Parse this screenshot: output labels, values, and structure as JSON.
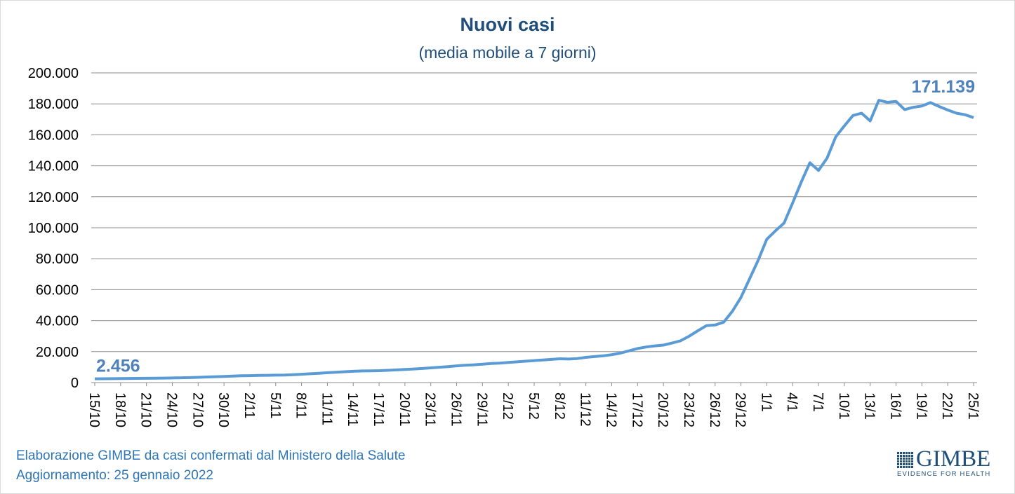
{
  "chart_data": {
    "type": "line",
    "title": "Nuovi casi",
    "subtitle": "(media mobile a 7 giorni)",
    "xlabel": "",
    "ylabel": "",
    "ylim": [
      0,
      200000
    ],
    "yticks": [
      "0",
      "20.000",
      "40.000",
      "60.000",
      "80.000",
      "100.000",
      "120.000",
      "140.000",
      "160.000",
      "180.000",
      "200.000"
    ],
    "grid": true,
    "line_color": "#5b9bd5",
    "xtick_labels": [
      "15/10",
      "18/10",
      "21/10",
      "24/10",
      "27/10",
      "30/10",
      "2/11",
      "5/11",
      "8/11",
      "11/11",
      "14/11",
      "17/11",
      "20/11",
      "23/11",
      "26/11",
      "29/11",
      "2/12",
      "5/12",
      "8/12",
      "11/12",
      "14/12",
      "17/12",
      "20/12",
      "23/12",
      "26/12",
      "29/12",
      "1/1",
      "4/1",
      "7/1",
      "10/1",
      "13/1",
      "16/1",
      "19/1",
      "22/1",
      "25/1"
    ],
    "xtick_every_days": 3,
    "start_date": "15/10",
    "end_date": "25/1",
    "series": [
      {
        "name": "Nuovi casi",
        "values": [
          2456,
          2500,
          2550,
          2600,
          2650,
          2700,
          2750,
          2800,
          2900,
          3000,
          3100,
          3200,
          3400,
          3600,
          3800,
          4000,
          4200,
          4400,
          4500,
          4600,
          4700,
          4800,
          4900,
          5100,
          5400,
          5700,
          6000,
          6400,
          6700,
          7000,
          7300,
          7500,
          7600,
          7700,
          7900,
          8200,
          8500,
          8800,
          9100,
          9500,
          9900,
          10300,
          10800,
          11200,
          11500,
          11900,
          12300,
          12600,
          13000,
          13400,
          13800,
          14200,
          14600,
          15000,
          15400,
          15200,
          15500,
          16300,
          16800,
          17300,
          18000,
          19000,
          20500,
          22000,
          23000,
          23700,
          24200,
          25500,
          27000,
          30000,
          33500,
          36800,
          37200,
          39000,
          46000,
          55000,
          67000,
          79000,
          92600,
          98000,
          103000,
          116000,
          129500,
          142000,
          137000,
          145000,
          158700,
          165800,
          172500,
          174000,
          169000,
          182300,
          181000,
          181600,
          176300,
          177800,
          178600,
          180800,
          178300,
          176000,
          174000,
          173000,
          171139
        ]
      }
    ],
    "annotations": [
      {
        "text": "2.456",
        "at": "first"
      },
      {
        "text": "171.139",
        "at": "last"
      }
    ]
  },
  "footer": {
    "source": "Elaborazione GIMBE da casi confermati dal Ministero della Salute",
    "updated": "Aggiornamento: 25 gennaio 2022"
  },
  "logo": {
    "name": "GIMBE",
    "tagline": "EVIDENCE FOR HEALTH"
  }
}
